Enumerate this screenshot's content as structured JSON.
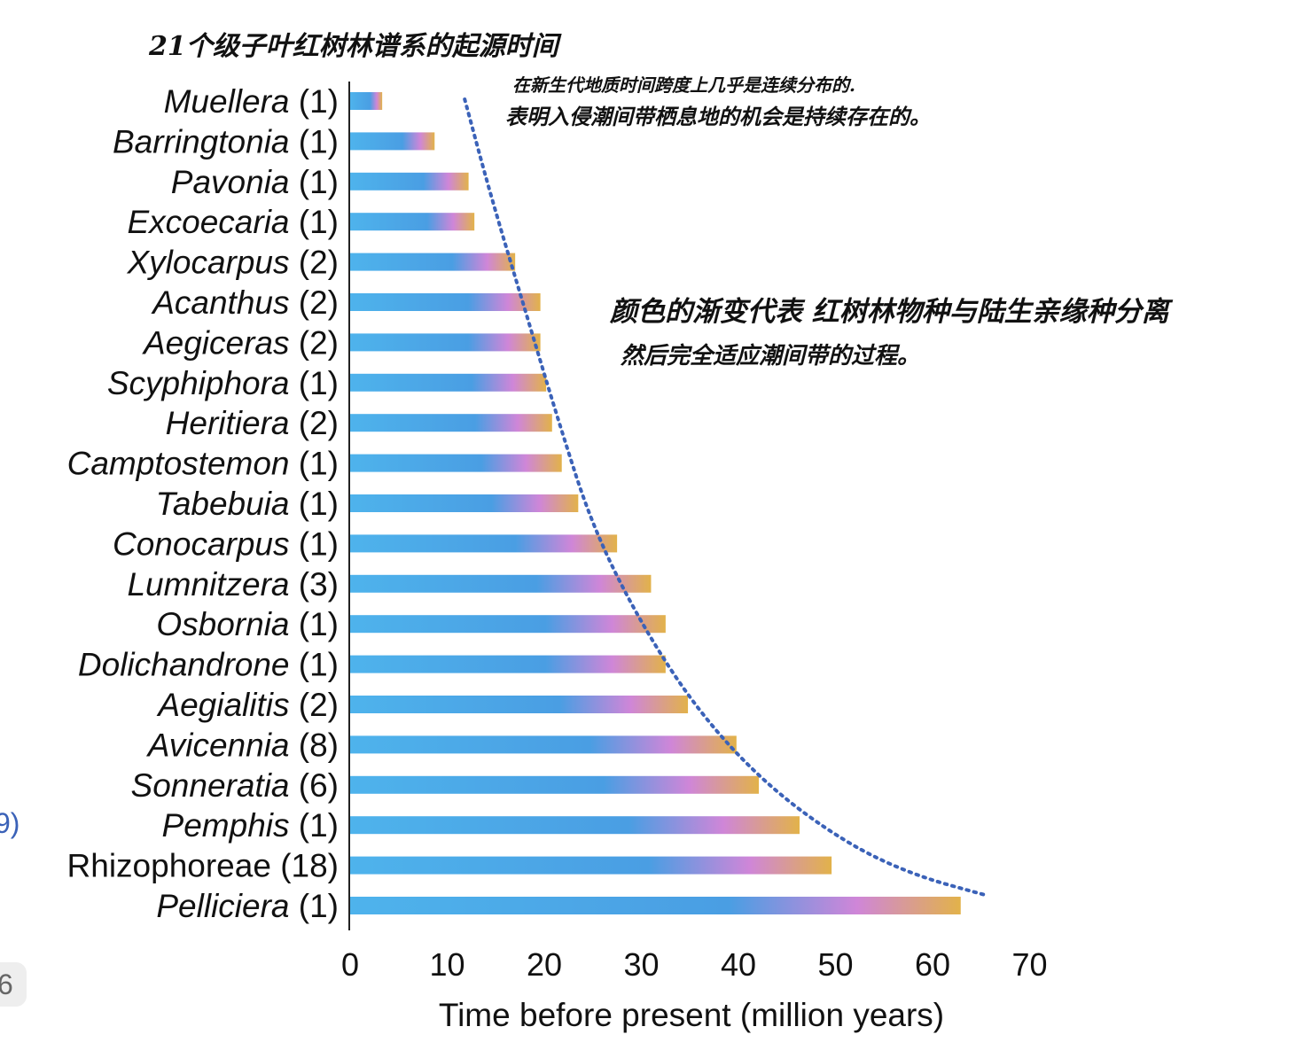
{
  "annotations": {
    "title_note": "21个级子叶红树林谱系的起源时间",
    "top_note_line1": "在新生代地质时间跨度上几乎是连续分布的.",
    "top_note_line2": "表明入侵潮间带栖息地的机会是持续存在的。",
    "mid_note_line1": "颜色的渐变代表 红树林物种与陆生亲缘种分离",
    "mid_note_line2": "然后完全适应潮间带的过程。",
    "left_edge_fragment": "9)",
    "left_edge_badge": "6"
  },
  "chart_data": {
    "type": "bar",
    "orientation": "horizontal",
    "xlabel": "Time before present (million years)",
    "xlim": [
      0,
      70
    ],
    "xticks": [
      0,
      10,
      20,
      30,
      40,
      50,
      60,
      70
    ],
    "grid": false,
    "categories": [
      {
        "name": "Muellera",
        "count": "(1)",
        "italic": true
      },
      {
        "name": "Barringtonia",
        "count": "(1)",
        "italic": true
      },
      {
        "name": "Pavonia",
        "count": "(1)",
        "italic": true
      },
      {
        "name": "Excoecaria",
        "count": "(1)",
        "italic": true
      },
      {
        "name": "Xylocarpus",
        "count": "(2)",
        "italic": true
      },
      {
        "name": "Acanthus",
        "count": "(2)",
        "italic": true
      },
      {
        "name": "Aegiceras",
        "count": "(2)",
        "italic": true
      },
      {
        "name": "Scyphiphora",
        "count": "(1)",
        "italic": true
      },
      {
        "name": "Heritiera",
        "count": "(2)",
        "italic": true
      },
      {
        "name": "Camptostemon",
        "count": "(1)",
        "italic": true
      },
      {
        "name": "Tabebuia",
        "count": "(1)",
        "italic": true
      },
      {
        "name": "Conocarpus",
        "count": "(1)",
        "italic": true
      },
      {
        "name": "Lumnitzera",
        "count": "(3)",
        "italic": true
      },
      {
        "name": "Osbornia",
        "count": "(1)",
        "italic": true
      },
      {
        "name": "Dolichandrone",
        "count": "(1)",
        "italic": true
      },
      {
        "name": "Aegialitis",
        "count": "(2)",
        "italic": true
      },
      {
        "name": "Avicennia",
        "count": "(8)",
        "italic": true
      },
      {
        "name": "Sonneratia",
        "count": "(6)",
        "italic": true
      },
      {
        "name": "Pemphis",
        "count": "(1)",
        "italic": true
      },
      {
        "name": "Rhizophoreae",
        "count": "(18)",
        "italic": false
      },
      {
        "name": "Pelliciera",
        "count": "(1)",
        "italic": true
      }
    ],
    "values": [
      3.3,
      8.7,
      12.2,
      12.8,
      17.0,
      19.6,
      19.6,
      20.2,
      20.8,
      21.8,
      23.5,
      27.5,
      31.0,
      32.5,
      32.5,
      34.8,
      39.8,
      42.1,
      46.3,
      49.6,
      62.9
    ],
    "trend_curve_points": [
      [
        11.8,
        100
      ],
      [
        14.5,
        88
      ],
      [
        18.0,
        74
      ],
      [
        21.5,
        60
      ],
      [
        25.0,
        47
      ],
      [
        30.0,
        35
      ],
      [
        36.0,
        24
      ],
      [
        43.0,
        15
      ],
      [
        51.0,
        8
      ],
      [
        58.0,
        4
      ],
      [
        65.5,
        1.5
      ]
    ],
    "colors": {
      "bar_start": "#4eb3ec",
      "bar_mid": "#4a9ee3",
      "bar_pink": "#cf86d8",
      "bar_end": "#e2b24a",
      "trend_line": "#3b62b8",
      "axis": "#222222"
    }
  }
}
